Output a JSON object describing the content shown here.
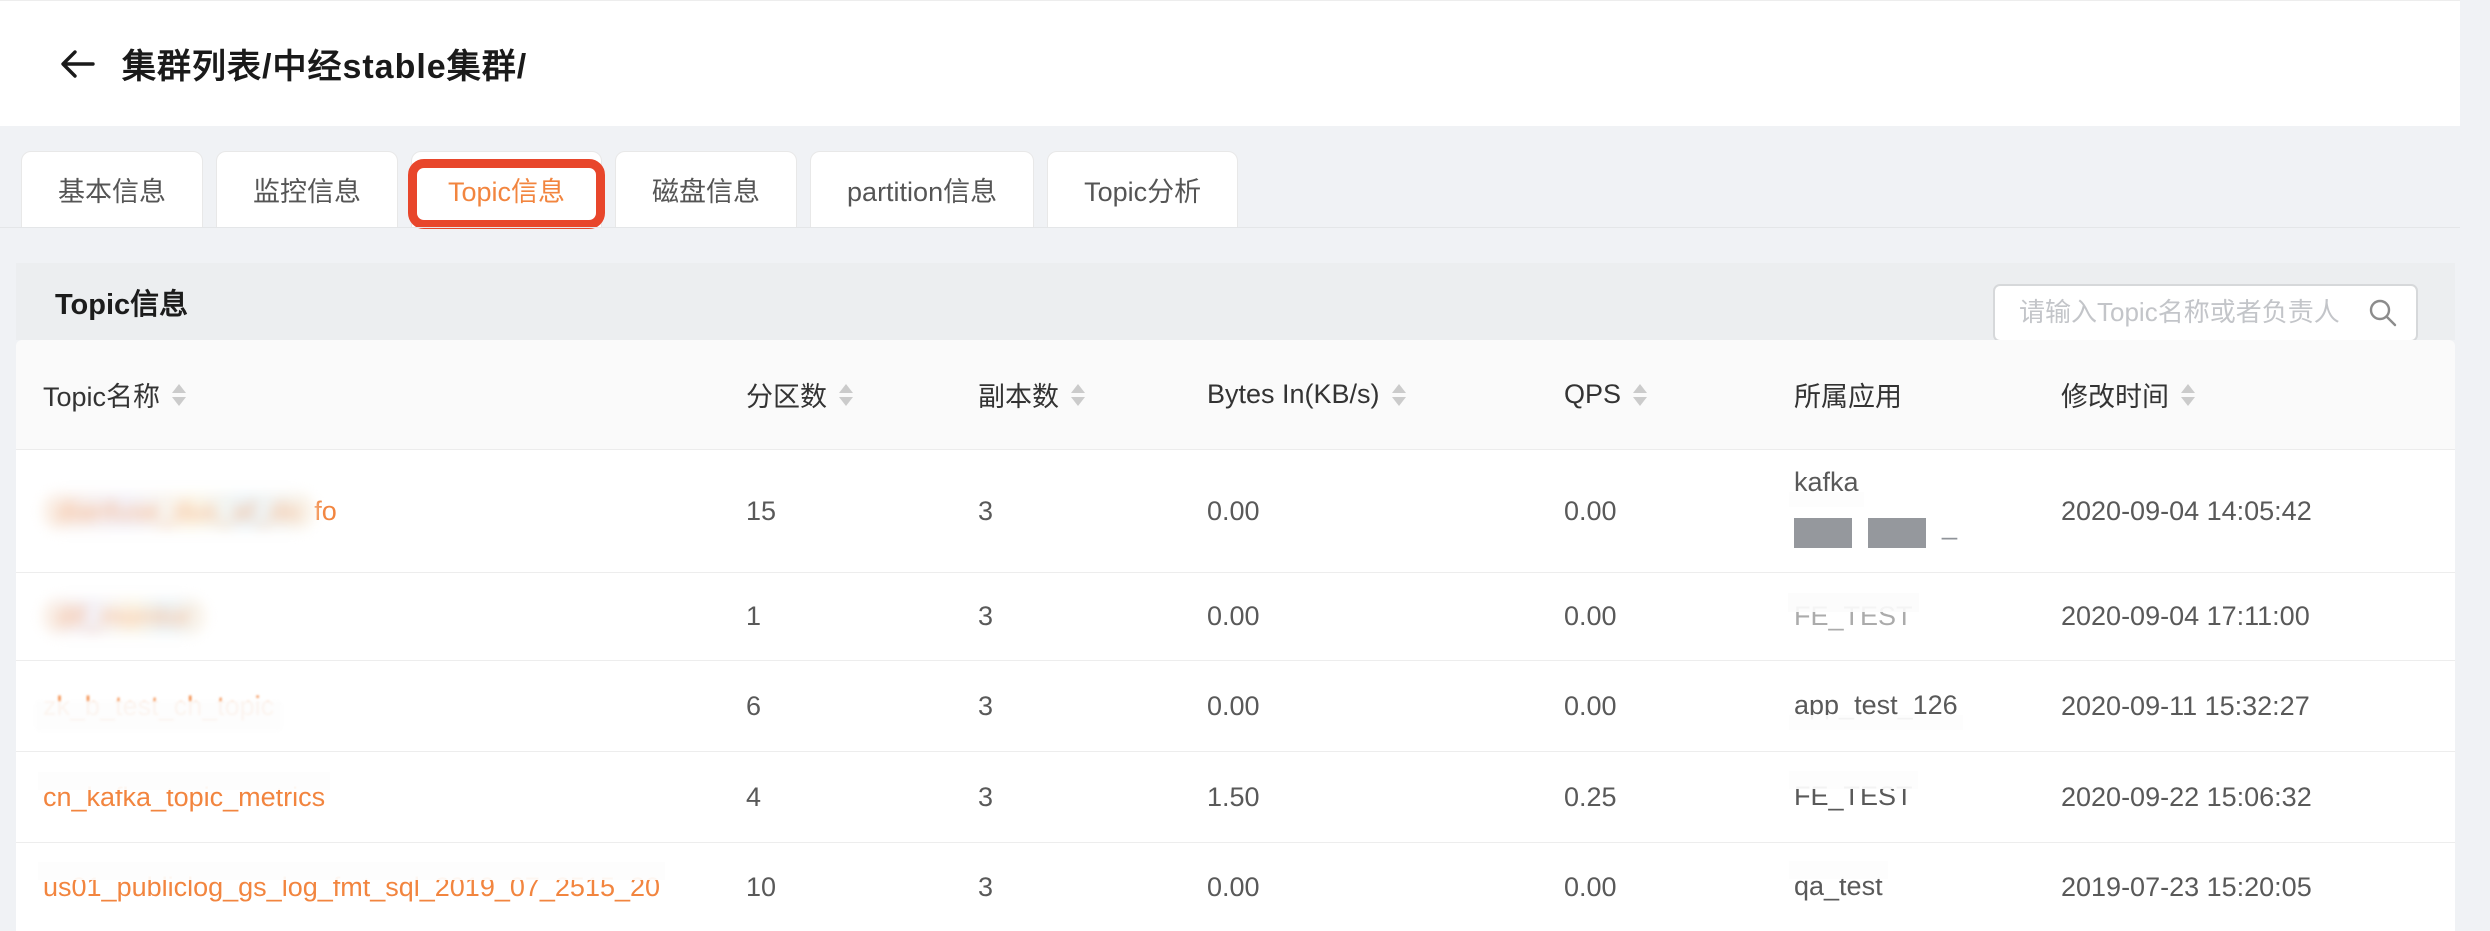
{
  "header": {
    "title": "集群列表/中经stable集群/"
  },
  "tabs": [
    {
      "label": "基本信息",
      "active": false
    },
    {
      "label": "监控信息",
      "active": false
    },
    {
      "label": "Topic信息",
      "active": true
    },
    {
      "label": "磁盘信息",
      "active": false
    },
    {
      "label": "partition信息",
      "active": false
    },
    {
      "label": "Topic分析",
      "active": false
    }
  ],
  "panel": {
    "title": "Topic信息",
    "search_placeholder": "请输入Topic名称或者负责人"
  },
  "table": {
    "columns": [
      {
        "label": "Topic名称",
        "sortable": true
      },
      {
        "label": "分区数",
        "sortable": true
      },
      {
        "label": "副本数",
        "sortable": true
      },
      {
        "label": "Bytes In(KB/s)",
        "sortable": true
      },
      {
        "label": "QPS",
        "sortable": true
      },
      {
        "label": "所属应用",
        "sortable": false
      },
      {
        "label": "修改时间",
        "sortable": true
      }
    ],
    "rows": [
      {
        "name_parts": [
          {
            "text": "dianfuse_dus_af_do",
            "style": "blur"
          },
          {
            "text": "fo",
            "style": "plain"
          }
        ],
        "partitions": "15",
        "replicas": "3",
        "bytes_in": "0.00",
        "qps": "0.00",
        "app_lines": [
          [
            {
              "text": "kafka",
              "style": "half-bottom"
            }
          ],
          [
            {
              "text": "",
              "style": "blocks"
            }
          ]
        ],
        "modified": "2020-09-04 14:05:42"
      },
      {
        "name_parts": [
          {
            "text": "dif_monitor",
            "style": "blur"
          }
        ],
        "partitions": "1",
        "replicas": "3",
        "bytes_in": "0.00",
        "qps": "0.00",
        "app_lines": [
          [
            {
              "text": "FE_TEST",
              "style": "ghost"
            }
          ]
        ],
        "modified": "2020-09-04 17:11:00"
      },
      {
        "name_parts": [
          {
            "text": "zk_b_test_ch_topic",
            "style": "tips"
          }
        ],
        "partitions": "6",
        "replicas": "3",
        "bytes_in": "0.00",
        "qps": "0.00",
        "app_lines": [
          [
            {
              "text": "app_test_126",
              "style": "half-bottom"
            }
          ]
        ],
        "modified": "2020-09-11 15:32:27"
      },
      {
        "name_parts": [
          {
            "text": "cn_kafka_topic_metrics",
            "style": "half-top"
          }
        ],
        "partitions": "4",
        "replicas": "3",
        "bytes_in": "1.50",
        "qps": "0.25",
        "app_lines": [
          [
            {
              "text": "FE_TEST",
              "style": "half-top"
            }
          ]
        ],
        "modified": "2020-09-22 15:06:32"
      },
      {
        "name_parts": [
          {
            "text": "us01_publiclog_gs_log_fmt_sql_2019_07_2515_20",
            "style": "half-top"
          }
        ],
        "partitions": "10",
        "replicas": "3",
        "bytes_in": "0.00",
        "qps": "0.00",
        "app_lines": [
          [
            {
              "text": "qa_test",
              "style": "half-top"
            }
          ]
        ],
        "modified": "2019-07-23 15:20:05"
      }
    ]
  },
  "colors": {
    "accent_orange": "#F2853F",
    "annotation_red": "#E8462B",
    "band_bg": "#ECEEF0",
    "table_header_bg": "#FAFAFA",
    "page_bg": "#F0F2F5"
  }
}
